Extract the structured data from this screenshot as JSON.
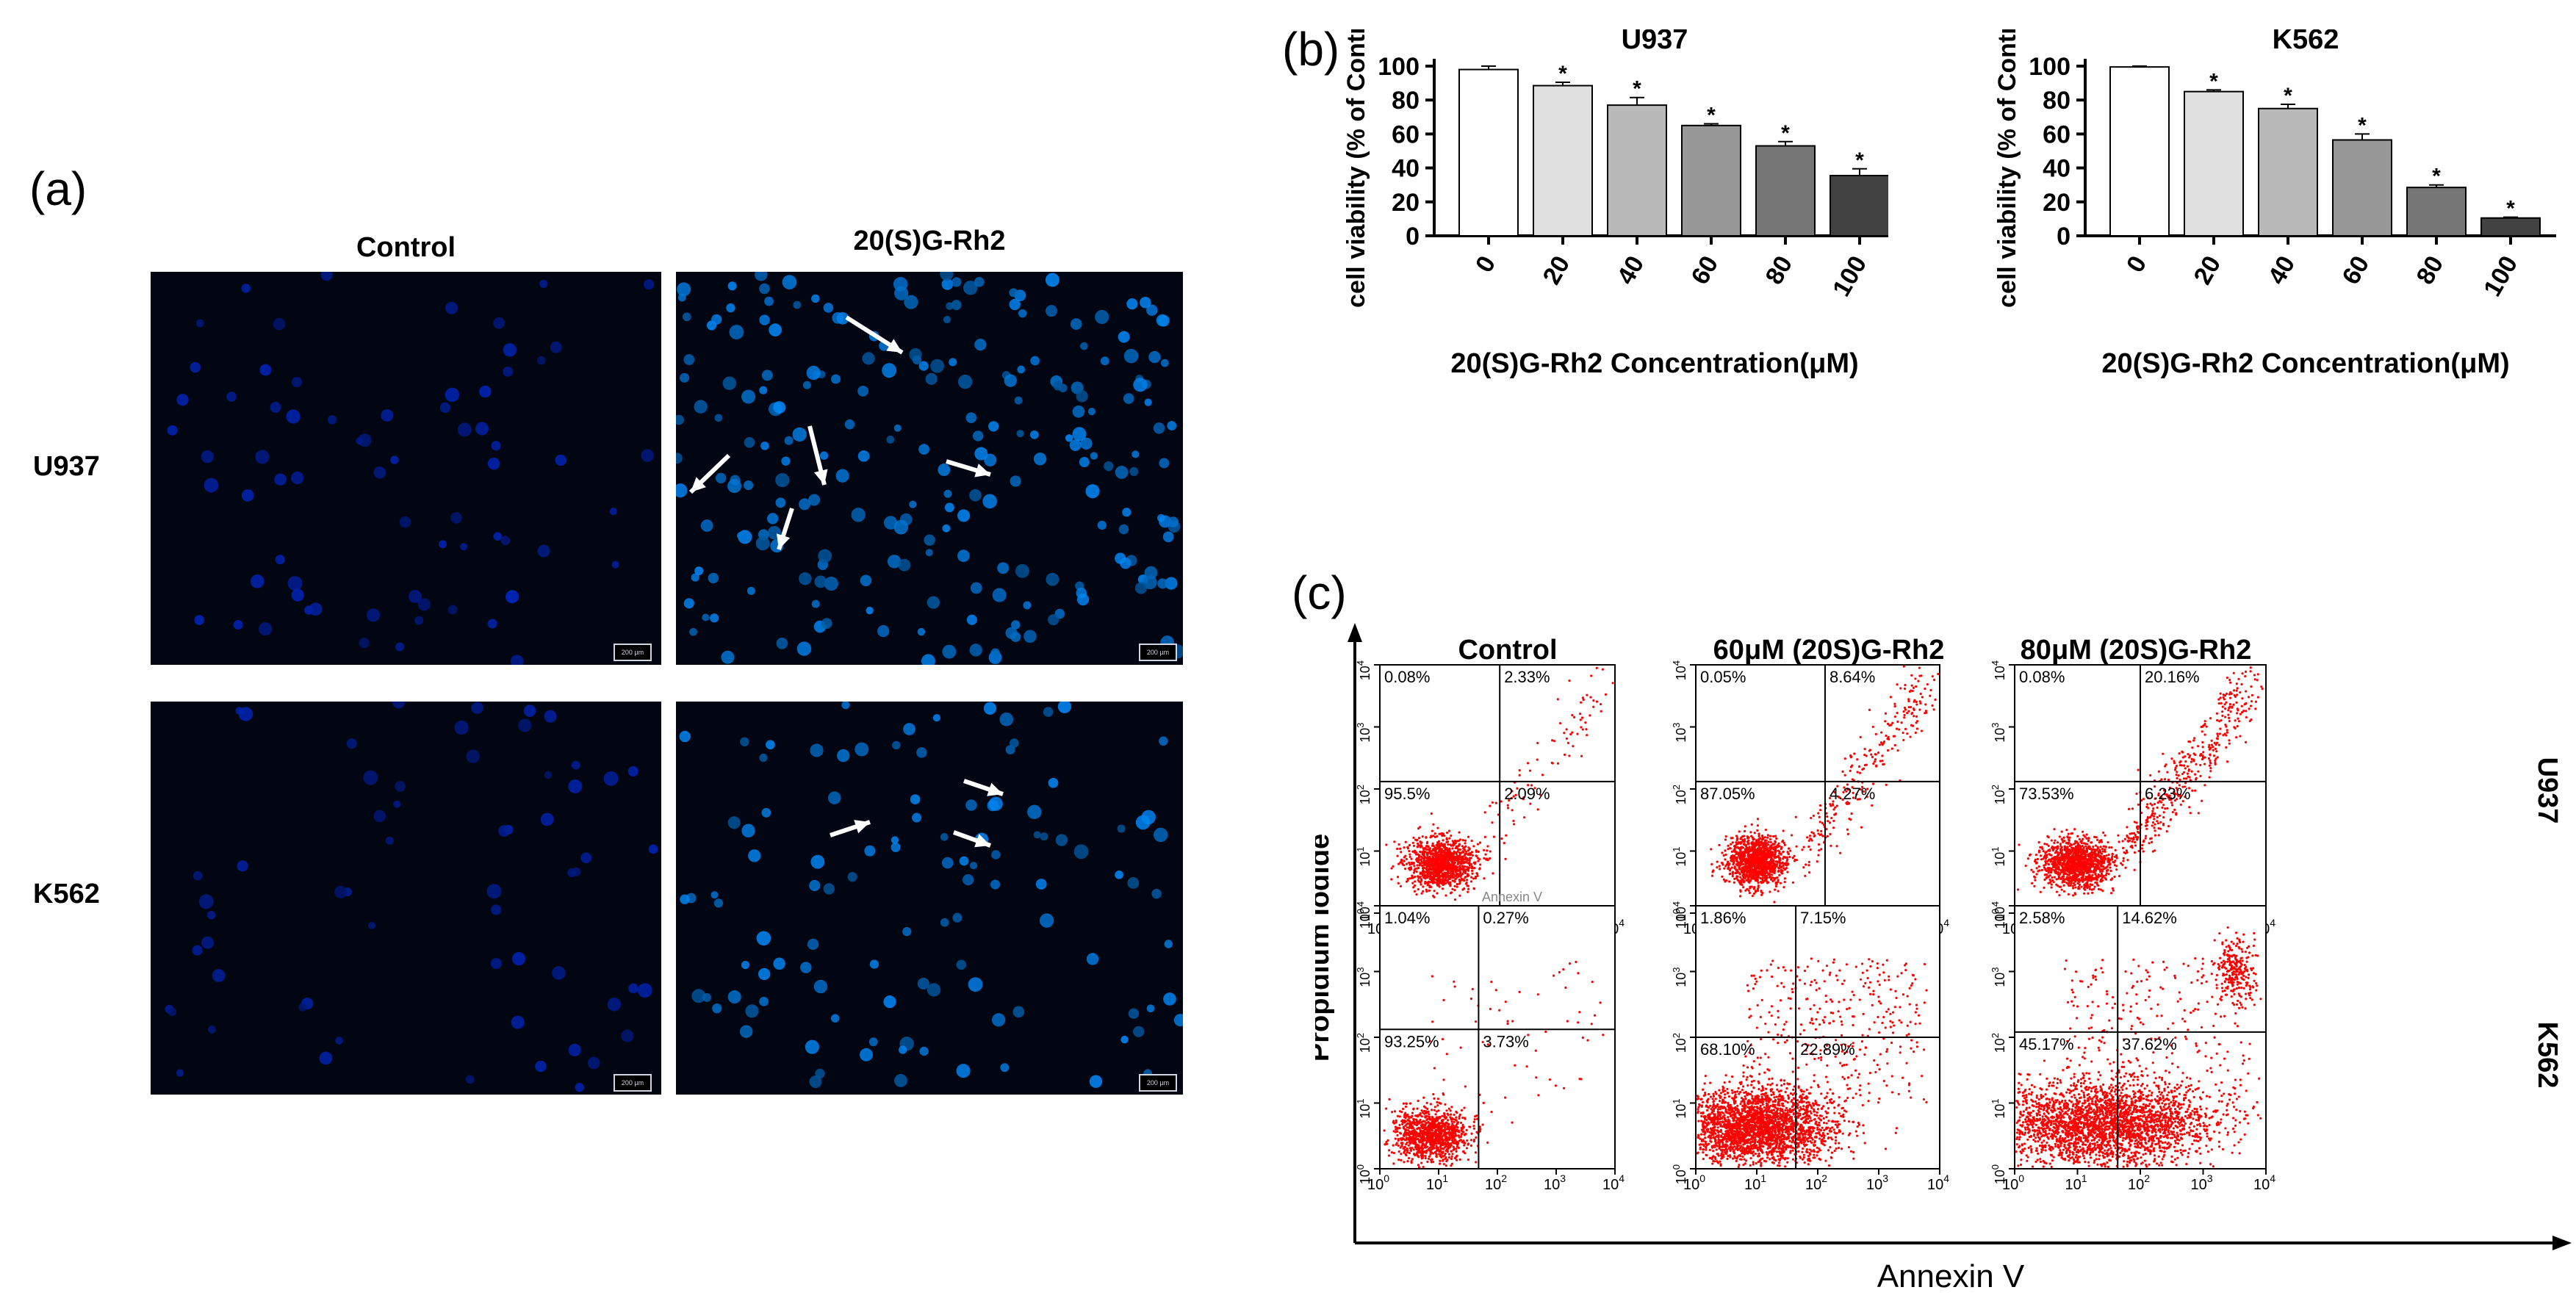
{
  "panel_labels": {
    "a": "(a)",
    "b": "(b)",
    "c": "(c)"
  },
  "micro": {
    "col_headers": [
      "Control",
      "20(S)G-Rh2"
    ],
    "row_headers": [
      "U937",
      "K562"
    ],
    "scale_label": "200 µm"
  },
  "viability_ylabel": "cell viability (% of Control)",
  "viability_xlabel": "20(S)G-Rh2 Concentration(μM)",
  "facs": {
    "col_headers": [
      "Control",
      "60μM (20S)G-Rh2",
      "80μM (20S)G-Rh2"
    ],
    "row_labels": [
      "U937",
      "K562"
    ],
    "y_axis": "Propidium Iodide",
    "x_axis": "Annexin V",
    "tick_exponents": [
      "0",
      "1",
      "2",
      "3",
      "4"
    ],
    "overlap_label": "Annexin V",
    "quadrants": [
      [
        [
          "0.08%",
          "2.33%",
          "95.5%",
          "2.09%"
        ],
        [
          "0.05%",
          "8.64%",
          "87.05%",
          "4.27%"
        ],
        [
          "0.08%",
          "20.16%",
          "73.53%",
          "6.23%"
        ]
      ],
      [
        [
          "1.04%",
          "0.27%",
          "93.25%",
          "3.73%"
        ],
        [
          "1.86%",
          "7.15%",
          "68.10%",
          "22.89%"
        ],
        [
          "2.58%",
          "14.62%",
          "45.17%",
          "37.62%"
        ]
      ]
    ]
  },
  "chart_data": [
    {
      "type": "bar",
      "title": "U937",
      "categories": [
        "0",
        "20",
        "40",
        "60",
        "80",
        "100"
      ],
      "values": [
        98,
        88.5,
        77,
        65,
        53,
        35.5
      ],
      "errors": [
        2,
        2,
        4.5,
        1,
        2.5,
        4
      ],
      "significance": [
        "",
        "*",
        "*",
        "*",
        "*",
        "*"
      ],
      "bar_colors": [
        "#ffffff",
        "#e0e0e0",
        "#b9b9b9",
        "#989898",
        "#767676",
        "#424242"
      ],
      "xlabel": "20(S)G-Rh2 Concentration(μM)",
      "ylabel": "cell viability (% of Control)",
      "ylim": [
        0,
        100
      ],
      "yticks": [
        0,
        20,
        40,
        60,
        80,
        100
      ]
    },
    {
      "type": "bar",
      "title": "K562",
      "categories": [
        "0",
        "20",
        "40",
        "60",
        "80",
        "100"
      ],
      "values": [
        99.5,
        85,
        75,
        56.5,
        28.5,
        10.5
      ],
      "errors": [
        0.5,
        1,
        2.5,
        3.5,
        1.5,
        0.5
      ],
      "significance": [
        "",
        "*",
        "*",
        "*",
        "*",
        "*"
      ],
      "bar_colors": [
        "#ffffff",
        "#e0e0e0",
        "#b9b9b9",
        "#989898",
        "#767676",
        "#424242"
      ],
      "xlabel": "20(S)G-Rh2 Concentration(μM)",
      "ylabel": "cell viability (% of Control)",
      "ylim": [
        0,
        100
      ],
      "yticks": [
        0,
        20,
        40,
        60,
        80,
        100
      ]
    }
  ]
}
